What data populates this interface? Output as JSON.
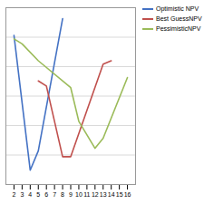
{
  "chart_data": {
    "type": "line",
    "series": [
      {
        "name": "Optimistic NPV",
        "color": "#4472C4",
        "x": [
          2,
          4,
          5,
          8
        ],
        "values": [
          0.72,
          -0.88,
          -0.65,
          0.92
        ]
      },
      {
        "name": "Best GuessNPV",
        "color": "#C0504D",
        "x": [
          5,
          6,
          8,
          9,
          13,
          14
        ],
        "values": [
          0.18,
          0.12,
          -0.72,
          -0.72,
          0.38,
          0.42
        ]
      },
      {
        "name": "PessimisticNPV",
        "color": "#9BBB59",
        "x": [
          2,
          3,
          5,
          9,
          10,
          12,
          13,
          16
        ],
        "values": [
          0.68,
          0.62,
          0.42,
          0.1,
          -0.3,
          -0.62,
          -0.5,
          0.22
        ]
      }
    ],
    "xlim": [
      1,
      17
    ],
    "ylim": [
      -1.05,
      1.05
    ],
    "xticks": [
      2,
      3,
      4,
      5,
      6,
      7,
      8,
      9,
      10,
      11,
      12,
      13,
      14,
      15,
      16
    ],
    "yticks": [
      -0.7,
      -0.35,
      0,
      0.35,
      0.7
    ],
    "grid": true,
    "tick_labels": "x",
    "legend": "right"
  }
}
